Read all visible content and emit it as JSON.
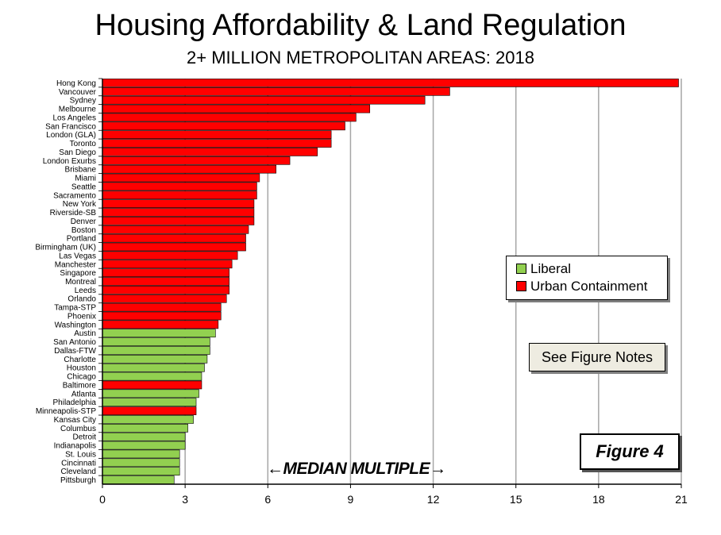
{
  "title": "Housing Affordability & Land Regulation",
  "subtitle": "2+ MILLION METROPOLITAN AREAS: 2018",
  "legend": {
    "liberal_label": "Liberal",
    "containment_label": "Urban Containment"
  },
  "notes_button": "See Figure Notes",
  "figure_label": "Figure 4",
  "axis_annotation": "←MEDIAN MULTIPLE→",
  "colors": {
    "liberal": "#92d050",
    "containment": "#ff0000",
    "grid": "#a6a6a6"
  },
  "chart_data": {
    "type": "bar",
    "orientation": "horizontal",
    "xlim": [
      0,
      21
    ],
    "xticks": [
      0,
      3,
      6,
      9,
      12,
      15,
      18,
      21
    ],
    "legend_position": "right",
    "categories": [
      "Hong Kong",
      "Vancouver",
      "Sydney",
      "Melbourne",
      "Los Angeles",
      "San Francisco",
      "London (GLA)",
      "Toronto",
      "San Diego",
      "London Exurbs",
      "Brisbane",
      "Miami",
      "Seattle",
      "Sacramento",
      "New York",
      "Riverside-SB",
      "Denver",
      "Boston",
      "Portland",
      "Birmingham (UK)",
      "Las Vegas",
      "Manchester",
      "Singapore",
      "Montreal",
      "Leeds",
      "Orlando",
      "Tampa-STP",
      "Phoenix",
      "Washington",
      "Austin",
      "San Antonio",
      "Dallas-FTW",
      "Charlotte",
      "Houston",
      "Chicago",
      "Baltimore",
      "Atlanta",
      "Philadelphia",
      "Minneapolis-STP",
      "Kansas City",
      "Columbus",
      "Detroit",
      "Indianapolis",
      "St. Louis",
      "Cincinnati",
      "Cleveland",
      "Pittsburgh"
    ],
    "values": [
      20.9,
      12.6,
      11.7,
      9.7,
      9.2,
      8.8,
      8.3,
      8.3,
      7.8,
      6.8,
      6.3,
      5.7,
      5.6,
      5.6,
      5.5,
      5.5,
      5.5,
      5.3,
      5.2,
      5.2,
      4.9,
      4.7,
      4.6,
      4.6,
      4.6,
      4.5,
      4.3,
      4.3,
      4.2,
      4.1,
      3.9,
      3.9,
      3.8,
      3.7,
      3.6,
      3.6,
      3.5,
      3.4,
      3.4,
      3.3,
      3.1,
      3.0,
      3.0,
      2.8,
      2.8,
      2.8,
      2.6
    ],
    "groups": [
      "Urban Containment",
      "Urban Containment",
      "Urban Containment",
      "Urban Containment",
      "Urban Containment",
      "Urban Containment",
      "Urban Containment",
      "Urban Containment",
      "Urban Containment",
      "Urban Containment",
      "Urban Containment",
      "Urban Containment",
      "Urban Containment",
      "Urban Containment",
      "Urban Containment",
      "Urban Containment",
      "Urban Containment",
      "Urban Containment",
      "Urban Containment",
      "Urban Containment",
      "Urban Containment",
      "Urban Containment",
      "Urban Containment",
      "Urban Containment",
      "Urban Containment",
      "Urban Containment",
      "Urban Containment",
      "Urban Containment",
      "Urban Containment",
      "Liberal",
      "Liberal",
      "Liberal",
      "Liberal",
      "Liberal",
      "Liberal",
      "Urban Containment",
      "Liberal",
      "Liberal",
      "Urban Containment",
      "Liberal",
      "Liberal",
      "Liberal",
      "Liberal",
      "Liberal",
      "Liberal",
      "Liberal",
      "Liberal"
    ]
  }
}
